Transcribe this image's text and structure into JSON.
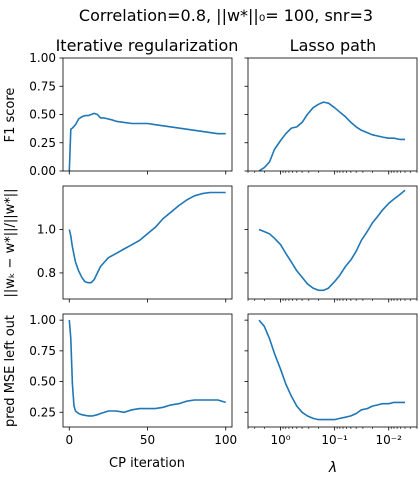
{
  "suptitle": "Correlation=0.8, ||w*||₀= 100, snr=3",
  "colors": {
    "line": "#1f77b4",
    "axes": "#000000"
  },
  "chart_data": [
    {
      "type": "line",
      "row": 0,
      "col": 0,
      "title": "Iterative regularization",
      "xlabel": "",
      "ylabel": "F1 score",
      "xlim": [
        -4,
        104
      ],
      "ylim": [
        0,
        1
      ],
      "xscale": "linear",
      "yticks": [
        0,
        0.25,
        0.5,
        0.75,
        1.0
      ],
      "ytick_labels": [
        "0.00",
        "0.25",
        "0.50",
        "0.75",
        "1.00"
      ],
      "xticks": [
        0,
        50,
        100
      ],
      "xtick_labels": [],
      "series": [
        {
          "x": [
            0,
            1,
            2,
            4,
            6,
            8,
            10,
            12,
            14,
            16,
            18,
            20,
            22,
            25,
            28,
            30,
            35,
            40,
            45,
            50,
            55,
            60,
            65,
            70,
            75,
            80,
            85,
            90,
            95,
            100
          ],
          "y": [
            0,
            0.37,
            0.38,
            0.41,
            0.46,
            0.48,
            0.49,
            0.49,
            0.5,
            0.51,
            0.5,
            0.47,
            0.47,
            0.46,
            0.45,
            0.44,
            0.43,
            0.42,
            0.42,
            0.42,
            0.41,
            0.4,
            0.39,
            0.38,
            0.37,
            0.36,
            0.35,
            0.34,
            0.33,
            0.33
          ]
        }
      ]
    },
    {
      "type": "line",
      "row": 0,
      "col": 1,
      "title": "Lasso path",
      "xlabel": "",
      "ylabel": "",
      "xlim": [
        4,
        0.003
      ],
      "ylim": [
        0,
        1
      ],
      "xscale": "log",
      "xreversed": true,
      "yticks": [
        0,
        0.25,
        0.5,
        0.75,
        1.0
      ],
      "ytick_labels": [],
      "xticks": [
        1,
        0.1,
        0.01
      ],
      "xtick_labels": [],
      "series": [
        {
          "x": [
            2.5,
            2.0,
            1.6,
            1.3,
            1.0,
            0.8,
            0.63,
            0.5,
            0.4,
            0.32,
            0.25,
            0.2,
            0.16,
            0.13,
            0.1,
            0.08,
            0.063,
            0.05,
            0.04,
            0.032,
            0.025,
            0.02,
            0.016,
            0.013,
            0.01,
            0.008,
            0.0063,
            0.005
          ],
          "y": [
            0,
            0.03,
            0.08,
            0.19,
            0.27,
            0.33,
            0.38,
            0.39,
            0.43,
            0.5,
            0.56,
            0.59,
            0.61,
            0.6,
            0.56,
            0.52,
            0.48,
            0.43,
            0.39,
            0.36,
            0.34,
            0.32,
            0.31,
            0.3,
            0.29,
            0.29,
            0.28,
            0.28
          ]
        }
      ]
    },
    {
      "type": "line",
      "row": 1,
      "col": 0,
      "title": "",
      "xlabel": "",
      "ylabel": "||wₖ − w*||/||w*||",
      "xlim": [
        -4,
        104
      ],
      "ylim": [
        0.68,
        1.2
      ],
      "xscale": "linear",
      "yticks": [
        0.8,
        1.0
      ],
      "ytick_labels": [
        "0.8",
        "1.0"
      ],
      "xticks": [
        0,
        50,
        100
      ],
      "xtick_labels": [],
      "series": [
        {
          "x": [
            0,
            1,
            2,
            4,
            6,
            8,
            10,
            12,
            14,
            16,
            18,
            20,
            25,
            30,
            35,
            40,
            45,
            50,
            55,
            60,
            65,
            70,
            75,
            80,
            85,
            90,
            95,
            100
          ],
          "y": [
            1.0,
            0.97,
            0.92,
            0.85,
            0.81,
            0.78,
            0.76,
            0.755,
            0.755,
            0.77,
            0.8,
            0.83,
            0.87,
            0.89,
            0.91,
            0.93,
            0.95,
            0.98,
            1.01,
            1.05,
            1.08,
            1.11,
            1.135,
            1.155,
            1.165,
            1.17,
            1.17,
            1.17
          ]
        }
      ]
    },
    {
      "type": "line",
      "row": 1,
      "col": 1,
      "title": "",
      "xlabel": "",
      "ylabel": "",
      "xlim": [
        4,
        0.003
      ],
      "ylim": [
        0.68,
        1.2
      ],
      "xscale": "log",
      "xreversed": true,
      "yticks": [
        0.8,
        1.0
      ],
      "ytick_labels": [],
      "xticks": [
        1,
        0.1,
        0.01
      ],
      "xtick_labels": [],
      "series": [
        {
          "x": [
            2.5,
            2.0,
            1.6,
            1.3,
            1.0,
            0.8,
            0.63,
            0.5,
            0.4,
            0.32,
            0.25,
            0.2,
            0.16,
            0.13,
            0.1,
            0.08,
            0.063,
            0.05,
            0.04,
            0.032,
            0.025,
            0.02,
            0.016,
            0.013,
            0.01,
            0.008,
            0.0063,
            0.005
          ],
          "y": [
            1.0,
            0.99,
            0.98,
            0.96,
            0.93,
            0.89,
            0.85,
            0.81,
            0.78,
            0.75,
            0.73,
            0.72,
            0.72,
            0.73,
            0.76,
            0.79,
            0.83,
            0.86,
            0.9,
            0.95,
            0.99,
            1.03,
            1.06,
            1.09,
            1.12,
            1.14,
            1.16,
            1.18
          ]
        }
      ]
    },
    {
      "type": "line",
      "row": 2,
      "col": 0,
      "title": "",
      "xlabel": "CP iteration",
      "ylabel": "pred MSE left out",
      "xlim": [
        -4,
        104
      ],
      "ylim": [
        0.13,
        1.05
      ],
      "xscale": "linear",
      "yticks": [
        0.25,
        0.5,
        0.75,
        1.0
      ],
      "ytick_labels": [
        "0.25",
        "0.50",
        "0.75",
        "1.00"
      ],
      "xticks": [
        0,
        50,
        100
      ],
      "xtick_labels": [
        "0",
        "50",
        "100"
      ],
      "series": [
        {
          "x": [
            0,
            1,
            2,
            3,
            4,
            6,
            8,
            10,
            12,
            15,
            18,
            20,
            25,
            30,
            35,
            40,
            45,
            50,
            55,
            60,
            65,
            70,
            75,
            80,
            85,
            90,
            95,
            100
          ],
          "y": [
            1.0,
            0.85,
            0.48,
            0.3,
            0.26,
            0.24,
            0.23,
            0.225,
            0.22,
            0.22,
            0.23,
            0.24,
            0.26,
            0.26,
            0.25,
            0.27,
            0.28,
            0.28,
            0.28,
            0.29,
            0.31,
            0.32,
            0.34,
            0.35,
            0.35,
            0.35,
            0.35,
            0.33
          ]
        }
      ]
    },
    {
      "type": "line",
      "row": 2,
      "col": 1,
      "title": "",
      "xlabel": "λ",
      "ylabel": "",
      "xlim": [
        4,
        0.003
      ],
      "ylim": [
        0.13,
        1.05
      ],
      "xscale": "log",
      "xreversed": true,
      "yticks": [
        0.25,
        0.5,
        0.75,
        1.0
      ],
      "ytick_labels": [],
      "xticks": [
        1,
        0.1,
        0.01
      ],
      "xtick_labels": [
        "10⁰",
        "10⁻¹",
        "10⁻²"
      ],
      "series": [
        {
          "x": [
            2.5,
            2.0,
            1.6,
            1.3,
            1.0,
            0.8,
            0.63,
            0.5,
            0.4,
            0.32,
            0.25,
            0.2,
            0.16,
            0.13,
            0.1,
            0.08,
            0.063,
            0.05,
            0.04,
            0.032,
            0.025,
            0.02,
            0.016,
            0.013,
            0.01,
            0.008,
            0.0063,
            0.005
          ],
          "y": [
            1.0,
            0.95,
            0.85,
            0.73,
            0.6,
            0.48,
            0.38,
            0.3,
            0.25,
            0.22,
            0.2,
            0.19,
            0.19,
            0.19,
            0.19,
            0.2,
            0.21,
            0.22,
            0.24,
            0.27,
            0.28,
            0.3,
            0.31,
            0.32,
            0.32,
            0.33,
            0.33,
            0.33
          ]
        }
      ]
    }
  ]
}
